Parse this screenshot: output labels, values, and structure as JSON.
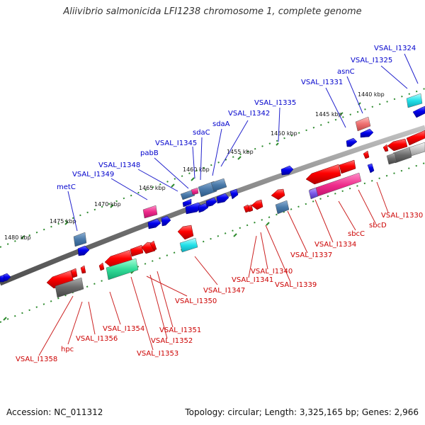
{
  "title": "Aliivibrio salmonicida LFI1238 chromosome 1, complete genome",
  "footer": {
    "accession": "Accession: NC_011312",
    "topology": "Topology: circular; Length: 3,325,165 bp; Genes: 2,966"
  },
  "colors": {
    "forward_label": "#0000cc",
    "reverse_label": "#cc0000",
    "backbone": "#777777",
    "tick": "#2e8b2e"
  },
  "ticks": [
    "1440 kbp",
    "1445 kbp",
    "1450 kbp",
    "1455 kbp",
    "1460 kbp",
    "1465 kbp",
    "1470 kbp",
    "1475 kbp",
    "1480 kbp"
  ],
  "forward_labels": [
    "VSAL_I1324",
    "VSAL_I1325",
    "asnC",
    "VSAL_I1331",
    "VSAL_I1335",
    "VSAL_I1342",
    "sdaA",
    "sdaC",
    "VSAL_I1345",
    "pabB",
    "VSAL_I1348",
    "VSAL_I1349",
    "metC"
  ],
  "reverse_labels": [
    "VSAL_I1330",
    "sbcD",
    "sbcC",
    "VSAL_I1334",
    "VSAL_I1337",
    "VSAL_I1339",
    "VSAL_I1340",
    "VSAL_I1341",
    "VSAL_I1347",
    "VSAL_I1350",
    "VSAL_I1351",
    "VSAL_I1352",
    "VSAL_I1353",
    "VSAL_I1354",
    "VSAL_I1356",
    "hpc",
    "VSAL_I1358"
  ]
}
